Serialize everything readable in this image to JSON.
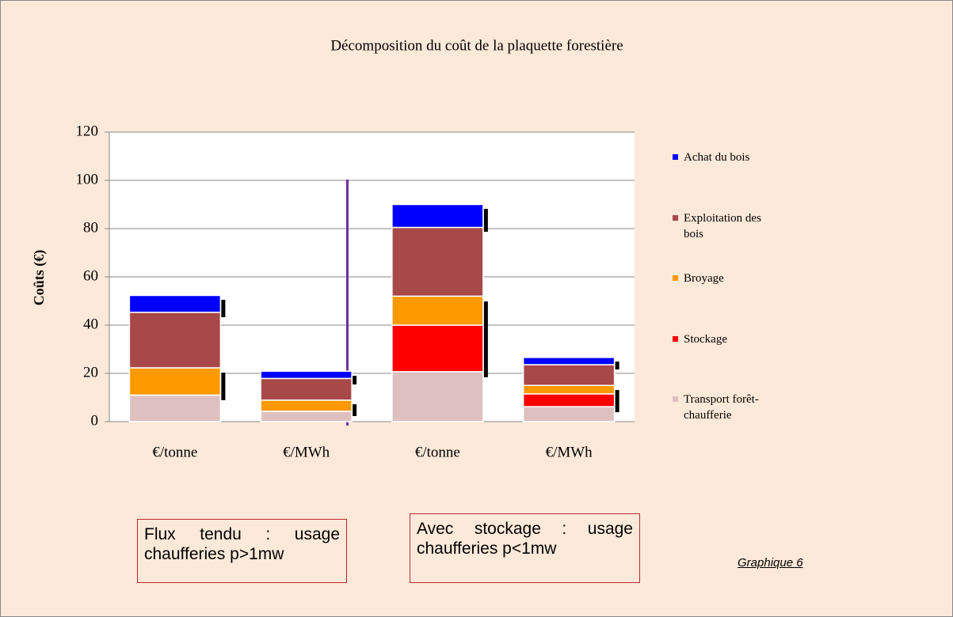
{
  "chart_data": {
    "type": "stacked_bar",
    "title": "Décomposition du coût de la plaquette forestière",
    "y_label": "Coûts (€)",
    "categories": [
      "€/tonne",
      "€/MWh",
      "€/tonne",
      "€/MWh"
    ],
    "series": [
      {
        "name": "Transport forêt-chaufferie",
        "color": "#dfc0c0",
        "values": [
          11,
          4.3,
          20.7,
          6.2
        ]
      },
      {
        "name": "Stockage",
        "color": "#ff0000",
        "values": [
          0,
          0,
          19.3,
          5.3
        ]
      },
      {
        "name": "Broyage",
        "color": "#ff9900",
        "values": [
          11.3,
          4.6,
          12,
          3.5
        ]
      },
      {
        "name": "Exploitation des bois",
        "color": "#a84848",
        "values": [
          23,
          9,
          28.5,
          8.6
        ]
      },
      {
        "name": "Achat du bois",
        "color": "#0000ff",
        "values": [
          7,
          3,
          9.5,
          3
        ]
      }
    ],
    "ranges": [
      [
        [
          43.3,
          50.5
        ],
        [
          8.9,
          20.3
        ]
      ],
      [
        [
          15.4,
          19
        ],
        [
          2.3,
          7.2
        ]
      ],
      [
        [
          78.7,
          88.2
        ],
        [
          18.4,
          49.8
        ]
      ],
      [
        [
          21.6,
          24.9
        ],
        [
          3.9,
          13.1
        ]
      ]
    ],
    "ylim": [
      0,
      120
    ],
    "yticks": [
      0,
      20,
      40,
      60,
      80,
      100,
      120
    ],
    "grid": true,
    "annotations": [
      "Flux tendu : usage chaufferies p>1mw",
      "Avec stockage : usage chaufferies p<1mw",
      "Graphique 6"
    ]
  }
}
